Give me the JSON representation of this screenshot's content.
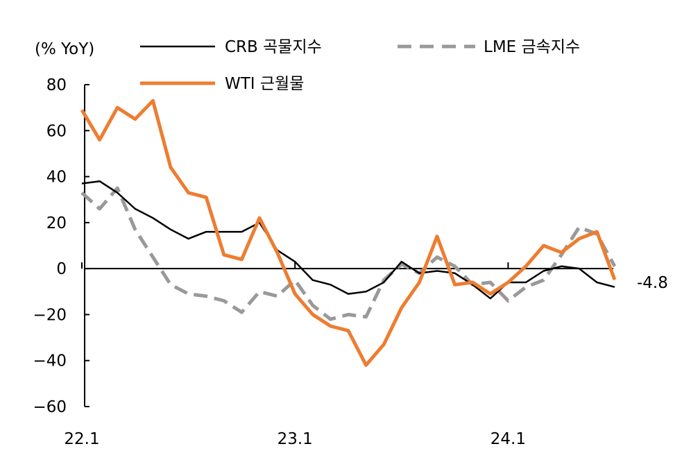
{
  "chart_data": {
    "type": "line",
    "ylabel": "(% YoY)",
    "ylim": [
      -60,
      80
    ],
    "yticks": [
      80,
      60,
      40,
      20,
      0,
      -20,
      -40,
      -60
    ],
    "ytick_labels": [
      "80",
      "60",
      "40",
      "20",
      "0",
      "−20",
      "−40",
      "−60"
    ],
    "xticks": [
      {
        "index": 0,
        "label": "22.1"
      },
      {
        "index": 12,
        "label": "23.1"
      },
      {
        "index": 24,
        "label": "24.1"
      }
    ],
    "x_count": 31,
    "grid": false,
    "legend_position": "top",
    "annotation": {
      "text": "-4.8",
      "series": "WTI 근월물"
    },
    "series": [
      {
        "name": "CRB 곡물지수",
        "color": "#000000",
        "style": "solid",
        "values": [
          37,
          38,
          33,
          26,
          22,
          17,
          13,
          16,
          16,
          16,
          20,
          8,
          3,
          -5,
          -7,
          -11,
          -10,
          -6,
          3,
          -2,
          -1,
          -2,
          -7,
          -13,
          -6,
          -6,
          -1,
          1,
          0,
          -6,
          -8
        ]
      },
      {
        "name": "LME 금속지수",
        "color": "#999999",
        "style": "dashed",
        "values": [
          33,
          26,
          35,
          17,
          5,
          -7,
          -11,
          -12,
          -14,
          -19,
          -10,
          -12,
          -5,
          -16,
          -22,
          -20,
          -21,
          -5,
          2,
          -2,
          5,
          1,
          -7,
          -6,
          -14,
          -8,
          -5,
          6,
          18,
          15,
          1
        ]
      },
      {
        "name": "WTI 근월물",
        "color": "#ED7D31",
        "style": "solid",
        "values": [
          69,
          56,
          70,
          65,
          73,
          44,
          33,
          31,
          6,
          4,
          22,
          7,
          -11,
          -20,
          -25,
          -27,
          -42,
          -33,
          -17,
          -6,
          14,
          -7,
          -6,
          -11,
          -6,
          1,
          10,
          7,
          13,
          16,
          -4.8
        ]
      }
    ]
  }
}
